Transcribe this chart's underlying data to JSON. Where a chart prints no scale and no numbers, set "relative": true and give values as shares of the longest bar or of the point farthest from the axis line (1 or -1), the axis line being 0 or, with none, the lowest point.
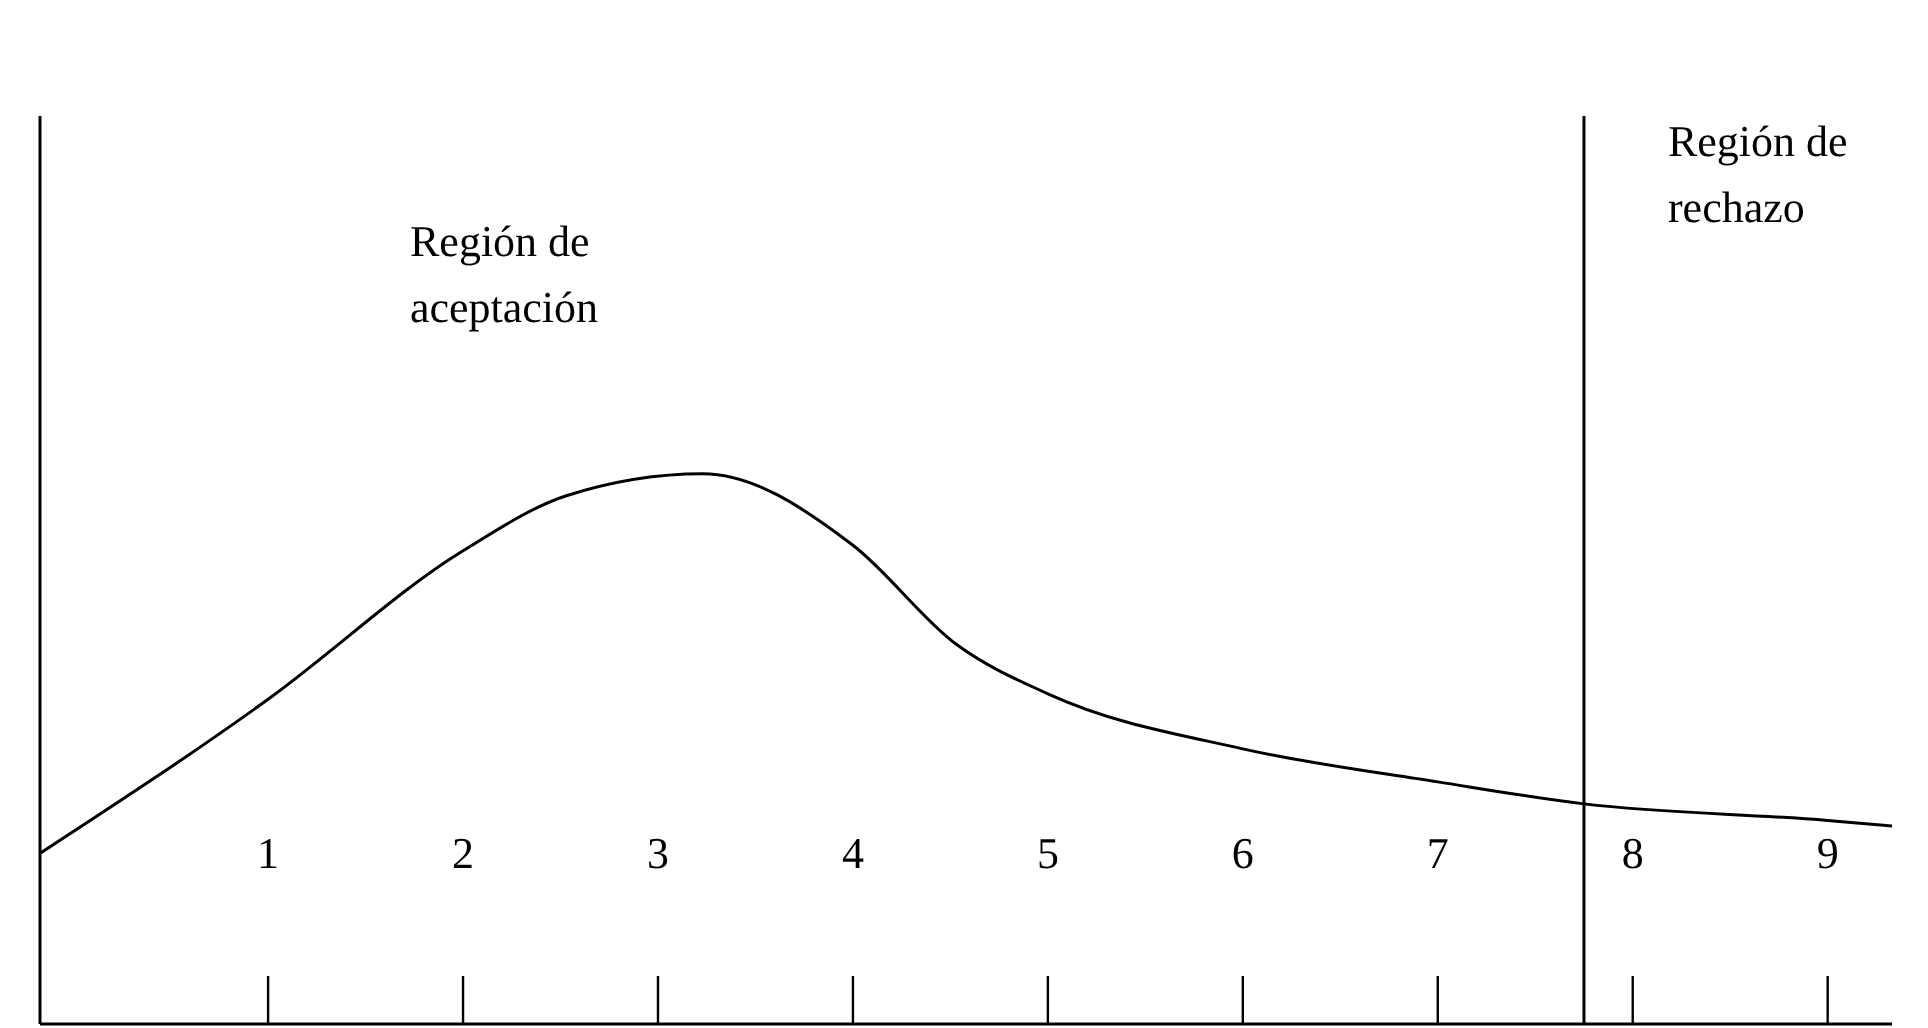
{
  "chart_data": {
    "type": "line",
    "relative": true,
    "xlim": [
      -0.17,
      9.33
    ],
    "xticks": [
      1,
      2,
      3,
      4,
      5,
      6,
      7,
      8,
      9
    ],
    "series": [
      {
        "color": "#000000",
        "x": [
          -0.17,
          1,
          2,
          2.53,
          3.23,
          4,
          4.53,
          5,
          6,
          7,
          7.75,
          9,
          9.33
        ],
        "values": [
          0.31,
          0.59,
          0.86,
          0.96,
          1,
          0.87,
          0.69,
          0.6,
          0.5,
          0.44,
          0.4,
          0.37,
          0.36
        ]
      }
    ],
    "ref_lines": [
      {
        "axis": "x",
        "value": 7.75,
        "label": "Región de rechazo",
        "color": "#000000"
      }
    ],
    "annotations": [
      "Región de aceptación"
    ],
    "marker": "none",
    "line_style": "solid",
    "grid": false,
    "legend": false
  }
}
